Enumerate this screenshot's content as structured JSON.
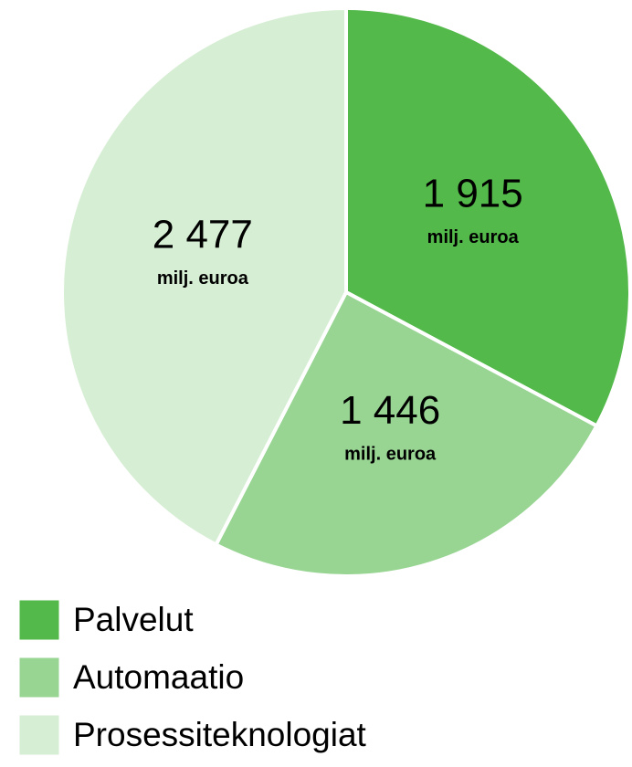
{
  "chart_data": {
    "type": "pie",
    "categories": [
      "Palvelut",
      "Automaatio",
      "Prosessiteknologiat"
    ],
    "values": [
      1915,
      1446,
      2477
    ],
    "value_labels": [
      "1 915",
      "1 446",
      "2 477"
    ],
    "unit_label": "milj. euroa",
    "colors": [
      "#53b94a",
      "#98d593",
      "#d6eed3"
    ],
    "legend": "bottom-left"
  }
}
